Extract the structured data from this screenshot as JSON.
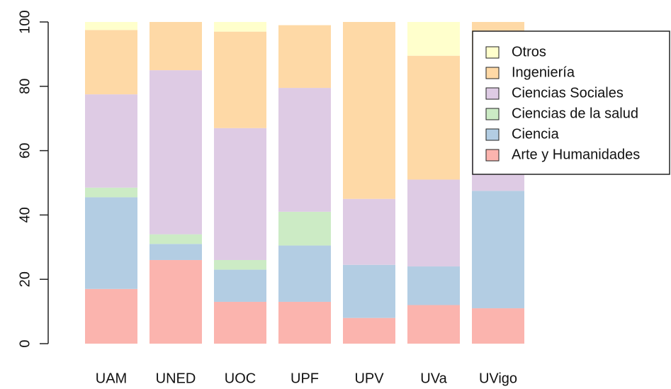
{
  "chart_data": {
    "type": "stacked_bar",
    "categories": [
      "UAM",
      "UNED",
      "UOC",
      "UPF",
      "UPV",
      "UVa",
      "UVigo"
    ],
    "series": [
      {
        "name": "Arte y Humanidades",
        "color": "#FBB4AE",
        "values": [
          17,
          26,
          13,
          13,
          8,
          12,
          11
        ]
      },
      {
        "name": "Ciencia",
        "color": "#B3CDE3",
        "values": [
          28.5,
          5,
          10,
          17.5,
          16.5,
          12,
          36.5
        ]
      },
      {
        "name": "Ciencias de la salud",
        "color": "#CCEBC5",
        "values": [
          3,
          3,
          3,
          10.5,
          0,
          0,
          0
        ]
      },
      {
        "name": "Ciencias Sociales",
        "color": "#DECBE4",
        "values": [
          29,
          51,
          41,
          38.5,
          20.5,
          27,
          20
        ]
      },
      {
        "name": "Ingeniería",
        "color": "#FED9A6",
        "values": [
          20,
          15,
          30,
          19.5,
          55,
          38.5,
          32.5
        ]
      },
      {
        "name": "Otros",
        "color": "#FFFFCC",
        "values": [
          2.5,
          0,
          3,
          0,
          0,
          10.5,
          0
        ]
      }
    ],
    "ylim": [
      0,
      100
    ],
    "yticks": [
      0,
      20,
      40,
      60,
      80,
      100
    ],
    "legend": "topright"
  }
}
